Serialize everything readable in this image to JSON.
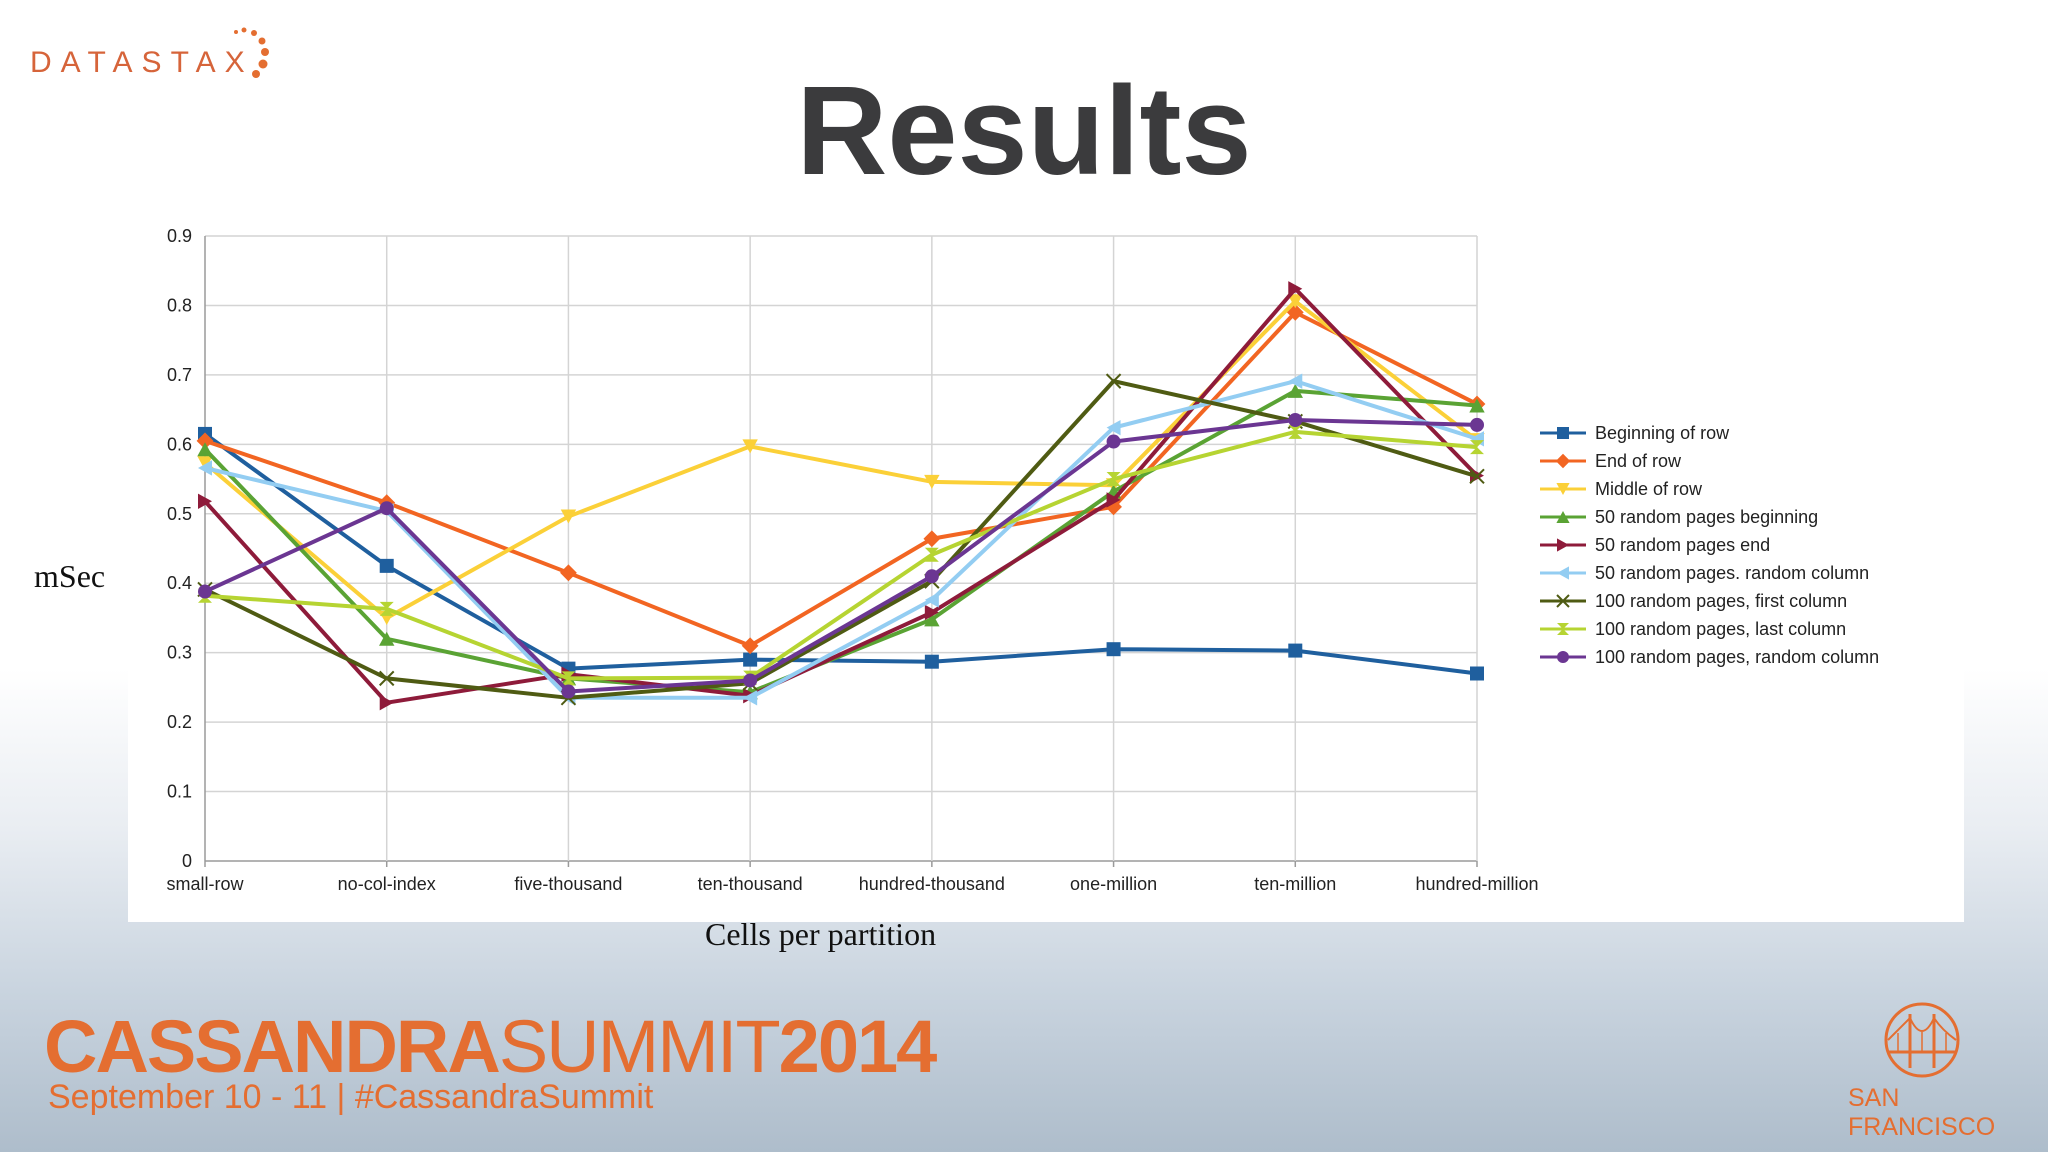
{
  "brand": {
    "wordmark": "DATASTAX"
  },
  "slide": {
    "title": "Results"
  },
  "colors": {
    "brand_orange": "#e46e31",
    "title_gray": "#3b3b3d"
  },
  "chart_data": {
    "type": "line",
    "title": "",
    "xlabel": "Cells per partition",
    "ylabel": "mSec",
    "ylim": [
      0,
      0.9
    ],
    "yticks": [
      0,
      0.1,
      0.2,
      0.3,
      0.4,
      0.5,
      0.6,
      0.7,
      0.8,
      0.9
    ],
    "ytick_labels": [
      "0",
      "0.1",
      "0.2",
      "0.3",
      "0.4",
      "0.5",
      "0.6",
      "0.7",
      "0.8",
      "0.9"
    ],
    "grid": true,
    "legend_position": "right",
    "categories": [
      "small-row",
      "no-col-index",
      "five-thousand",
      "ten-thousand",
      "hundred-thousand",
      "one-million",
      "ten-million",
      "hundred-million"
    ],
    "series": [
      {
        "name": "Beginning of row",
        "color": "#1f5f9e",
        "marker": "square",
        "values": [
          0.615,
          0.425,
          0.277,
          0.29,
          0.287,
          0.305,
          0.303,
          0.27
        ]
      },
      {
        "name": "End of row",
        "color": "#f26522",
        "marker": "diamond",
        "values": [
          0.605,
          0.516,
          0.415,
          0.31,
          0.464,
          0.51,
          0.79,
          0.658
        ]
      },
      {
        "name": "Middle of row",
        "color": "#fbd038",
        "marker": "triangle-down",
        "values": [
          0.573,
          0.35,
          0.496,
          0.597,
          0.546,
          0.541,
          0.806,
          0.606
        ]
      },
      {
        "name": "50 random pages beginning",
        "color": "#5aa334",
        "marker": "triangle-up",
        "values": [
          0.593,
          0.32,
          0.263,
          0.243,
          0.348,
          0.532,
          0.677,
          0.656
        ]
      },
      {
        "name": "50 random pages end",
        "color": "#8e1b3a",
        "marker": "triangle-right",
        "values": [
          0.518,
          0.228,
          0.269,
          0.238,
          0.358,
          0.52,
          0.824,
          0.555
        ]
      },
      {
        "name": "50 random pages. random column",
        "color": "#93cdf2",
        "marker": "triangle-left",
        "values": [
          0.566,
          0.504,
          0.235,
          0.235,
          0.376,
          0.624,
          0.691,
          0.608
        ]
      },
      {
        "name": "100 random pages, first column",
        "color": "#4f5b13",
        "marker": "bowtie",
        "values": [
          0.391,
          0.263,
          0.235,
          0.256,
          0.403,
          0.691,
          0.633,
          0.554
        ]
      },
      {
        "name": "100 random pages, last column",
        "color": "#b6d432",
        "marker": "hourglass",
        "values": [
          0.382,
          0.363,
          0.263,
          0.264,
          0.441,
          0.55,
          0.618,
          0.596
        ]
      },
      {
        "name": "100 random pages, random column",
        "color": "#6b3692",
        "marker": "circle",
        "values": [
          0.388,
          0.508,
          0.244,
          0.26,
          0.41,
          0.604,
          0.635,
          0.628
        ]
      }
    ]
  },
  "footer": {
    "event_name_bold": "CASSANDRA",
    "event_name_light": "SUMMIT",
    "event_year": "2014",
    "tagline": "September 10 - 11  |  #CassandraSummit",
    "city": "SAN FRANCISCO"
  }
}
